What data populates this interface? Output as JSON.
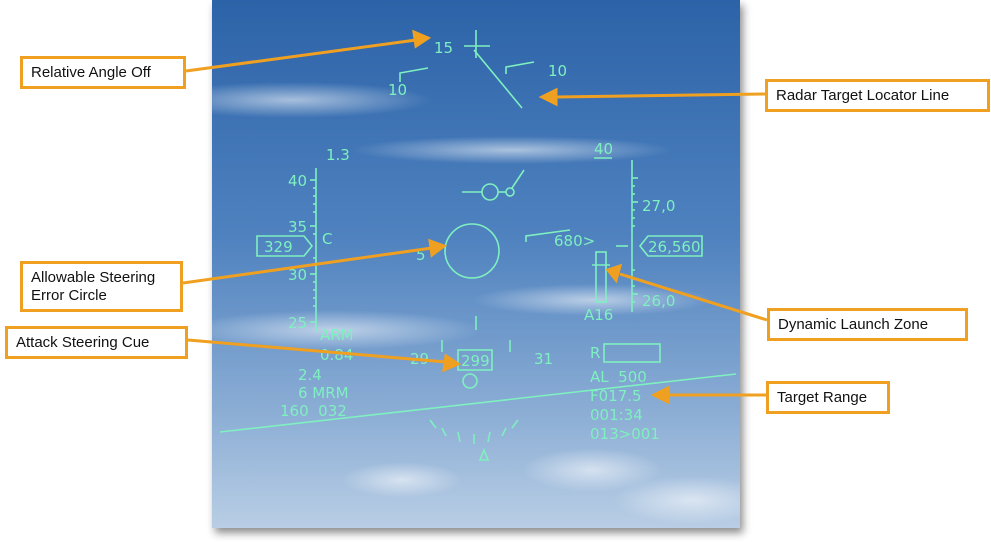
{
  "hud": {
    "heading_left": "10",
    "heading_right": "10",
    "relative_angle": "15",
    "mach_top": "1.3",
    "airspeed_scale": [
      "40",
      "35",
      "30",
      "25"
    ],
    "airspeed": "329",
    "c_label": "C",
    "altitude_top": "40",
    "altitude_scale_upper": "27,0",
    "altitude_scale_lower": "26,0",
    "altitude": "26,560",
    "closure_rate": "680>",
    "steering_error": "5",
    "arm": "ARM",
    "mach": "0.84",
    "g_load": "2.4",
    "missiles": "6 MRM",
    "heading_speed": "160  032",
    "heading_tape_left": "29",
    "heading_tape_right": "31",
    "heading_box": "299",
    "target_aspect": "A16",
    "range_label": "R",
    "al_line": "AL  500",
    "target_range": "F017.5",
    "time_to_target": "001:34",
    "waypoint": "013>001"
  },
  "callouts": {
    "relative_angle_off": "Relative Angle Off",
    "radar_target_locator_line": "Radar Target Locator Line",
    "allowable_steering_error_circle_line1": "Allowable Steering",
    "allowable_steering_error_circle_line2": "Error Circle",
    "dynamic_launch_zone": "Dynamic Launch Zone",
    "attack_steering_cue": "Attack Steering Cue",
    "target_range": "Target Range"
  },
  "colors": {
    "callout_border": "#f0a020",
    "hud_symbology": "#7ff0c0",
    "sky_top": "#2a5fa3",
    "sky_bottom": "#aac4df"
  }
}
